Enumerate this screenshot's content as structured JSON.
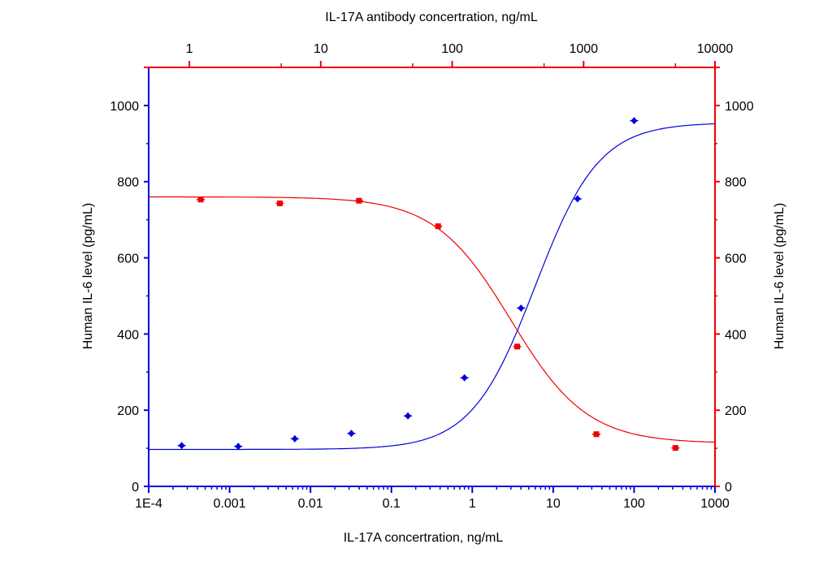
{
  "chart_data": {
    "type": "scatter",
    "title": "",
    "xlabel_bottom": "IL-17A  concertration, ng/mL",
    "xlabel_top": "IL-17A antibody concertration, ng/mL",
    "ylabel_left": "Human IL-6 level (pg/mL)",
    "ylabel_right": "Human IL-6 level (pg/mL)",
    "x_bottom_scale": "log",
    "x_bottom_lim": [
      0.0001,
      1000
    ],
    "x_bottom_ticks": [
      0.0001,
      0.001,
      0.01,
      0.1,
      1,
      10,
      100,
      1000
    ],
    "x_bottom_tick_labels": [
      "1E-4",
      "0.001",
      "0.01",
      "0.1",
      "1",
      "10",
      "100",
      "1000"
    ],
    "x_top_scale": "log",
    "x_top_lim": [
      0.49,
      10000
    ],
    "x_top_ticks": [
      1,
      10,
      100,
      1000,
      10000
    ],
    "x_top_tick_labels": [
      "1",
      "10",
      "100",
      "1000",
      "10000"
    ],
    "ylim": [
      0,
      1100
    ],
    "y_ticks": [
      0,
      200,
      400,
      600,
      800,
      1000
    ],
    "y_tick_labels": [
      "0",
      "200",
      "400",
      "600",
      "800",
      "1000"
    ],
    "grid": false,
    "series": [
      {
        "axis": "bottom-left",
        "color": "#0000dd",
        "marker": "diamond",
        "x": [
          0.000256,
          0.00128,
          0.0064,
          0.032,
          0.16,
          0.8,
          4,
          20,
          100
        ],
        "y": [
          107,
          105,
          125,
          139,
          185,
          285,
          468,
          755,
          960
        ],
        "fit": {
          "model": "4PL",
          "bottom": 97,
          "top": 955,
          "ec50": 6,
          "hill": 1.1
        }
      },
      {
        "axis": "top-right",
        "color": "#ee0000",
        "marker": "square",
        "x": [
          1.22,
          4.88,
          19.53,
          78.13,
          312.5,
          1250,
          5000
        ],
        "y": [
          753,
          743,
          750,
          683,
          367,
          137,
          101
        ],
        "fit": {
          "model": "4PL",
          "bottom": 113,
          "top": 760,
          "ec50": 280,
          "hill": 1.5
        }
      }
    ]
  }
}
